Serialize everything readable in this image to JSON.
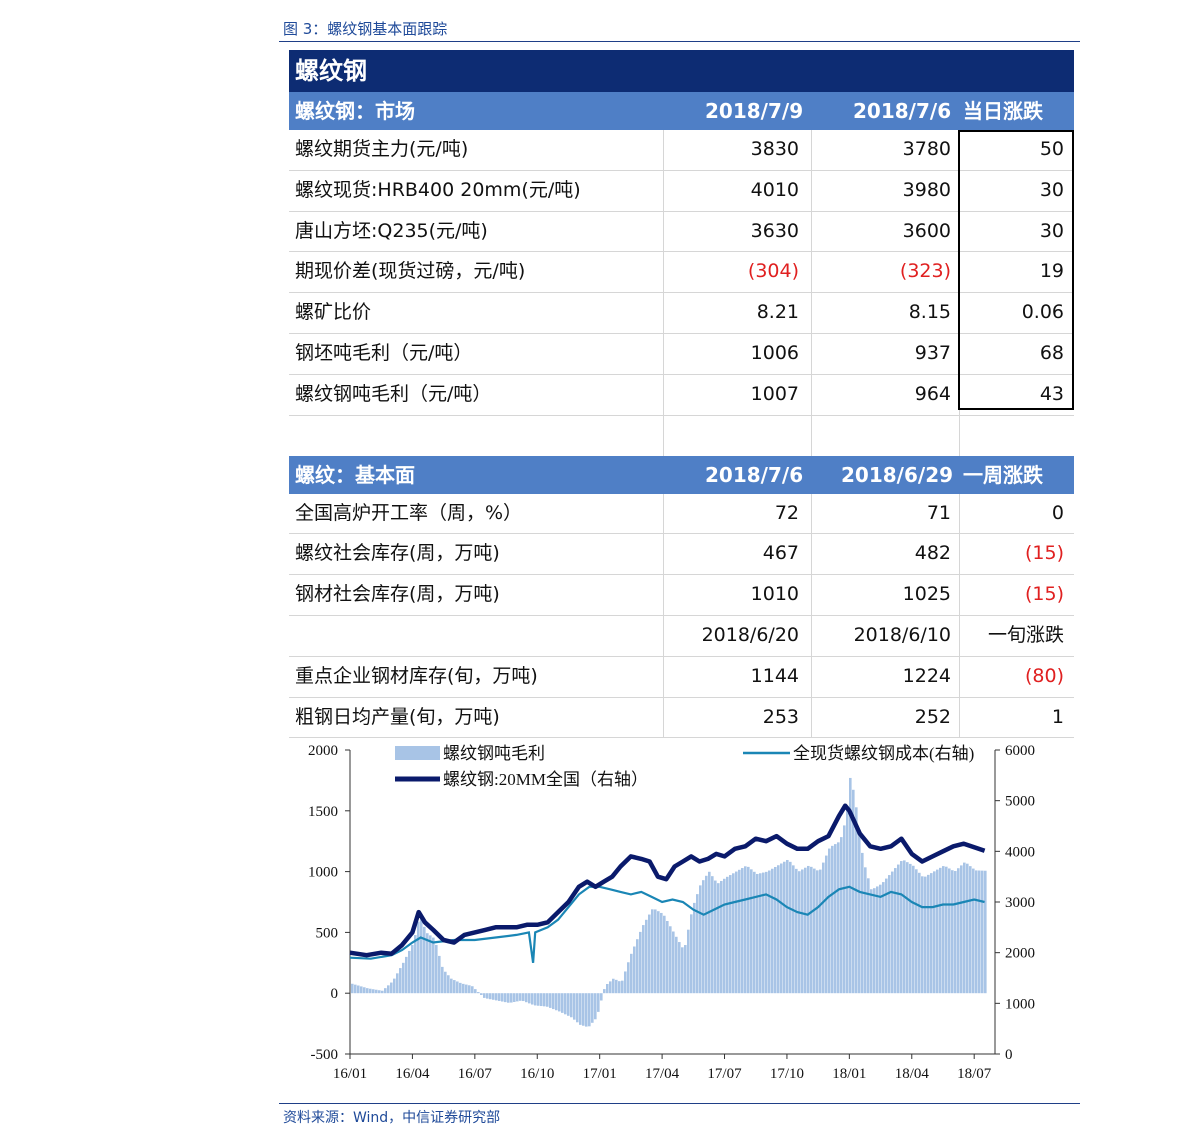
{
  "figure_title": "图 3：螺纹钢基本面跟踪",
  "source": "资料来源：Wind，中信证券研究部",
  "table": {
    "banner": "螺纹钢",
    "market": {
      "header": [
        "螺纹钢：市场",
        "2018/7/9",
        "2018/7/6",
        "当日涨跌"
      ],
      "rows": [
        {
          "label": "螺纹期货主力(元/吨)",
          "a": "3830",
          "b": "3780",
          "c": "50"
        },
        {
          "label": "螺纹现货:HRB400 20mm(元/吨)",
          "a": "4010",
          "b": "3980",
          "c": "30"
        },
        {
          "label": "唐山方坯:Q235(元/吨)",
          "a": "3630",
          "b": "3600",
          "c": "30"
        },
        {
          "label": "期现价差(现货过磅，元/吨)",
          "a": "(304)",
          "b": "(323)",
          "c": "19"
        },
        {
          "label": "螺矿比价",
          "a": "8.21",
          "b": "8.15",
          "c": "0.06"
        },
        {
          "label": "钢坯吨毛利（元/吨）",
          "a": "1006",
          "b": "937",
          "c": "68"
        },
        {
          "label": "螺纹钢吨毛利（元/吨）",
          "a": "1007",
          "b": "964",
          "c": "43"
        }
      ]
    },
    "fundamentals": {
      "header": [
        "螺纹：基本面",
        "2018/7/6",
        "2018/6/29",
        "一周涨跌"
      ],
      "rows": [
        {
          "label": "全国高炉开工率（周，%）",
          "a": "72",
          "b": "71",
          "c": "0"
        },
        {
          "label": "螺纹社会库存(周，万吨)",
          "a": "467",
          "b": "482",
          "c": "(15)"
        },
        {
          "label": "钢材社会库存(周，万吨)",
          "a": "1010",
          "b": "1025",
          "c": "(15)"
        },
        {
          "label": "",
          "a": "2018/6/20",
          "b": "2018/6/10",
          "c": "一旬涨跌"
        },
        {
          "label": "重点企业钢材库存(旬，万吨)",
          "a": "1144",
          "b": "1224",
          "c": "(80)"
        },
        {
          "label": "粗钢日均产量(旬，万吨)",
          "a": "253",
          "b": "252",
          "c": "1"
        }
      ]
    }
  },
  "colors": {
    "negative": "#e02020",
    "banner": "#0d2c73",
    "header": "#4f7fc6",
    "bars": "#a8c4e6",
    "line_cost": "#1a86b5",
    "line_price": "#0a1a6b"
  },
  "chart_data": {
    "type": "area",
    "legend": [
      "螺纹钢吨毛利",
      "全现货螺纹钢成本(右轴)",
      "螺纹钢:20MM全国（右轴）"
    ],
    "x_ticks": [
      "16/01",
      "16/04",
      "16/07",
      "16/10",
      "17/01",
      "17/04",
      "17/07",
      "17/10",
      "18/01",
      "18/04",
      "18/07"
    ],
    "y_left": {
      "range": [
        -500,
        2000
      ],
      "ticks": [
        "2000",
        "1500",
        "1000",
        "500",
        "0",
        "-500"
      ]
    },
    "y_right": {
      "range": [
        0,
        6000
      ],
      "ticks": [
        "6000",
        "5000",
        "4000",
        "3000",
        "2000",
        "1000",
        "0"
      ]
    },
    "x_range_months": [
      0,
      31
    ],
    "series": [
      {
        "name": "螺纹钢吨毛利",
        "axis": "left",
        "points": [
          [
            0,
            80
          ],
          [
            0.8,
            40
          ],
          [
            1.5,
            20
          ],
          [
            2,
            100
          ],
          [
            2.5,
            250
          ],
          [
            3,
            420
          ],
          [
            3.3,
            650
          ],
          [
            3.6,
            500
          ],
          [
            4,
            450
          ],
          [
            4.4,
            200
          ],
          [
            4.8,
            120
          ],
          [
            5.3,
            80
          ],
          [
            5.8,
            60
          ],
          [
            6.4,
            -40
          ],
          [
            7,
            -60
          ],
          [
            7.6,
            -80
          ],
          [
            8.2,
            -60
          ],
          [
            8.8,
            -100
          ],
          [
            9.4,
            -110
          ],
          [
            10,
            -150
          ],
          [
            10.6,
            -200
          ],
          [
            11,
            -260
          ],
          [
            11.4,
            -280
          ],
          [
            11.8,
            -200
          ],
          [
            12.2,
            60
          ],
          [
            12.6,
            120
          ],
          [
            13,
            90
          ],
          [
            13.4,
            300
          ],
          [
            14,
            550
          ],
          [
            14.5,
            700
          ],
          [
            15,
            650
          ],
          [
            15.5,
            500
          ],
          [
            16,
            350
          ],
          [
            16.4,
            700
          ],
          [
            16.8,
            900
          ],
          [
            17.2,
            1000
          ],
          [
            17.6,
            900
          ],
          [
            18,
            950
          ],
          [
            18.5,
            1000
          ],
          [
            19,
            1050
          ],
          [
            19.5,
            980
          ],
          [
            20,
            1000
          ],
          [
            20.5,
            1050
          ],
          [
            21,
            1100
          ],
          [
            21.5,
            1000
          ],
          [
            22,
            1050
          ],
          [
            22.5,
            1000
          ],
          [
            23,
            1200
          ],
          [
            23.5,
            1250
          ],
          [
            23.8,
            1450
          ],
          [
            24,
            1800
          ],
          [
            24.3,
            1500
          ],
          [
            24.6,
            1100
          ],
          [
            25,
            850
          ],
          [
            25.5,
            900
          ],
          [
            26,
            1000
          ],
          [
            26.5,
            1100
          ],
          [
            27,
            1050
          ],
          [
            27.5,
            950
          ],
          [
            28,
            1000
          ],
          [
            28.5,
            1050
          ],
          [
            29,
            1000
          ],
          [
            29.5,
            1080
          ],
          [
            30,
            1010
          ],
          [
            30.5,
            1007
          ]
        ]
      },
      {
        "name": "全现货螺纹钢成本(右轴)",
        "axis": "right",
        "points": [
          [
            0,
            1900
          ],
          [
            1,
            1880
          ],
          [
            2,
            1950
          ],
          [
            2.5,
            2050
          ],
          [
            3,
            2200
          ],
          [
            3.4,
            2300
          ],
          [
            4,
            2200
          ],
          [
            5,
            2250
          ],
          [
            6,
            2250
          ],
          [
            7,
            2300
          ],
          [
            8,
            2350
          ],
          [
            8.6,
            2400
          ],
          [
            8.8,
            1800
          ],
          [
            8.9,
            2400
          ],
          [
            9.5,
            2500
          ],
          [
            10,
            2650
          ],
          [
            10.5,
            2900
          ],
          [
            11,
            3150
          ],
          [
            11.5,
            3300
          ],
          [
            12,
            3300
          ],
          [
            12.5,
            3250
          ],
          [
            13,
            3200
          ],
          [
            13.5,
            3150
          ],
          [
            14,
            3200
          ],
          [
            14.5,
            3100
          ],
          [
            15,
            3000
          ],
          [
            15.5,
            3050
          ],
          [
            16,
            3000
          ],
          [
            16.5,
            2850
          ],
          [
            17,
            2750
          ],
          [
            17.5,
            2850
          ],
          [
            18,
            2950
          ],
          [
            18.5,
            3000
          ],
          [
            19,
            3050
          ],
          [
            19.5,
            3100
          ],
          [
            20,
            3150
          ],
          [
            20.5,
            3050
          ],
          [
            21,
            2900
          ],
          [
            21.5,
            2800
          ],
          [
            22,
            2750
          ],
          [
            22.5,
            2900
          ],
          [
            23,
            3100
          ],
          [
            23.5,
            3250
          ],
          [
            24,
            3300
          ],
          [
            24.5,
            3200
          ],
          [
            25,
            3150
          ],
          [
            25.5,
            3100
          ],
          [
            26,
            3200
          ],
          [
            26.5,
            3150
          ],
          [
            27,
            3000
          ],
          [
            27.5,
            2900
          ],
          [
            28,
            2900
          ],
          [
            28.5,
            2950
          ],
          [
            29,
            2950
          ],
          [
            29.5,
            3000
          ],
          [
            30,
            3050
          ],
          [
            30.5,
            3000
          ]
        ]
      },
      {
        "name": "螺纹钢:20MM全国（右轴）",
        "axis": "right",
        "points": [
          [
            0,
            2000
          ],
          [
            0.8,
            1950
          ],
          [
            1.5,
            2000
          ],
          [
            2,
            1980
          ],
          [
            2.5,
            2150
          ],
          [
            3,
            2400
          ],
          [
            3.3,
            2800
          ],
          [
            3.6,
            2600
          ],
          [
            4,
            2450
          ],
          [
            4.5,
            2250
          ],
          [
            5,
            2200
          ],
          [
            5.5,
            2350
          ],
          [
            6,
            2400
          ],
          [
            6.5,
            2450
          ],
          [
            7,
            2500
          ],
          [
            7.5,
            2500
          ],
          [
            8,
            2500
          ],
          [
            8.5,
            2550
          ],
          [
            9,
            2550
          ],
          [
            9.5,
            2600
          ],
          [
            10,
            2800
          ],
          [
            10.5,
            3000
          ],
          [
            11,
            3300
          ],
          [
            11.4,
            3400
          ],
          [
            11.8,
            3300
          ],
          [
            12.2,
            3400
          ],
          [
            12.6,
            3500
          ],
          [
            13,
            3700
          ],
          [
            13.5,
            3900
          ],
          [
            14,
            3850
          ],
          [
            14.4,
            3800
          ],
          [
            14.8,
            3500
          ],
          [
            15.2,
            3450
          ],
          [
            15.6,
            3700
          ],
          [
            16,
            3800
          ],
          [
            16.4,
            3900
          ],
          [
            16.8,
            3800
          ],
          [
            17.2,
            3850
          ],
          [
            17.6,
            3950
          ],
          [
            18,
            3900
          ],
          [
            18.5,
            4050
          ],
          [
            19,
            4100
          ],
          [
            19.5,
            4250
          ],
          [
            20,
            4200
          ],
          [
            20.5,
            4300
          ],
          [
            21,
            4150
          ],
          [
            21.5,
            4050
          ],
          [
            22,
            4050
          ],
          [
            22.5,
            4200
          ],
          [
            23,
            4300
          ],
          [
            23.5,
            4700
          ],
          [
            23.8,
            4900
          ],
          [
            24,
            4800
          ],
          [
            24.5,
            4350
          ],
          [
            25,
            4100
          ],
          [
            25.5,
            4050
          ],
          [
            26,
            4100
          ],
          [
            26.5,
            4250
          ],
          [
            27,
            3950
          ],
          [
            27.5,
            3800
          ],
          [
            28,
            3900
          ],
          [
            28.5,
            4000
          ],
          [
            29,
            4100
          ],
          [
            29.5,
            4150
          ],
          [
            30,
            4080
          ],
          [
            30.5,
            4010
          ]
        ]
      }
    ]
  }
}
